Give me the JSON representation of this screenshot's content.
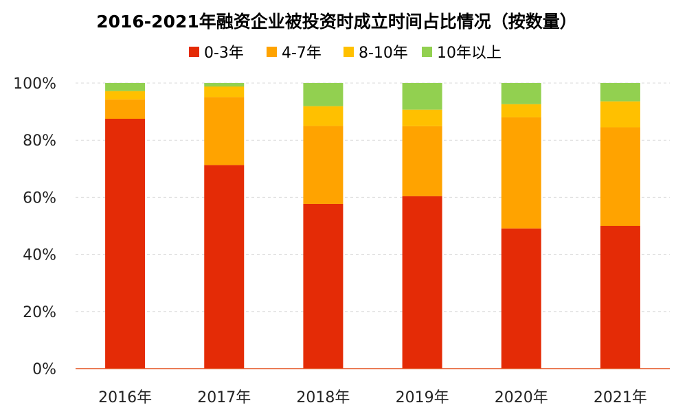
{
  "chart_data": {
    "type": "bar",
    "stacked": true,
    "title": "2016-2021年融资企业被投资时成立时间占比情况（按数量）",
    "xlabel": "",
    "ylabel": "",
    "categories": [
      "2016年",
      "2017年",
      "2018年",
      "2019年",
      "2020年",
      "2021年"
    ],
    "series": [
      {
        "name": "0-3年",
        "color": "#E42B06",
        "values": [
          87.5,
          71.3,
          57.7,
          60.4,
          49.1,
          50.0
        ]
      },
      {
        "name": "4-7年",
        "color": "#FFA300",
        "values": [
          6.8,
          23.8,
          27.3,
          24.5,
          38.9,
          34.5
        ]
      },
      {
        "name": "8-10年",
        "color": "#FFC000",
        "values": [
          2.9,
          3.7,
          6.9,
          5.8,
          4.6,
          9.1
        ]
      },
      {
        "name": "10年以上",
        "color": "#92D050",
        "values": [
          2.8,
          1.2,
          8.1,
          9.3,
          7.4,
          6.4
        ]
      }
    ],
    "ylim": [
      0,
      100
    ],
    "yticks": [
      "0%",
      "20%",
      "40%",
      "60%",
      "80%",
      "100%"
    ],
    "grid": true,
    "legend_position": "top-center"
  }
}
